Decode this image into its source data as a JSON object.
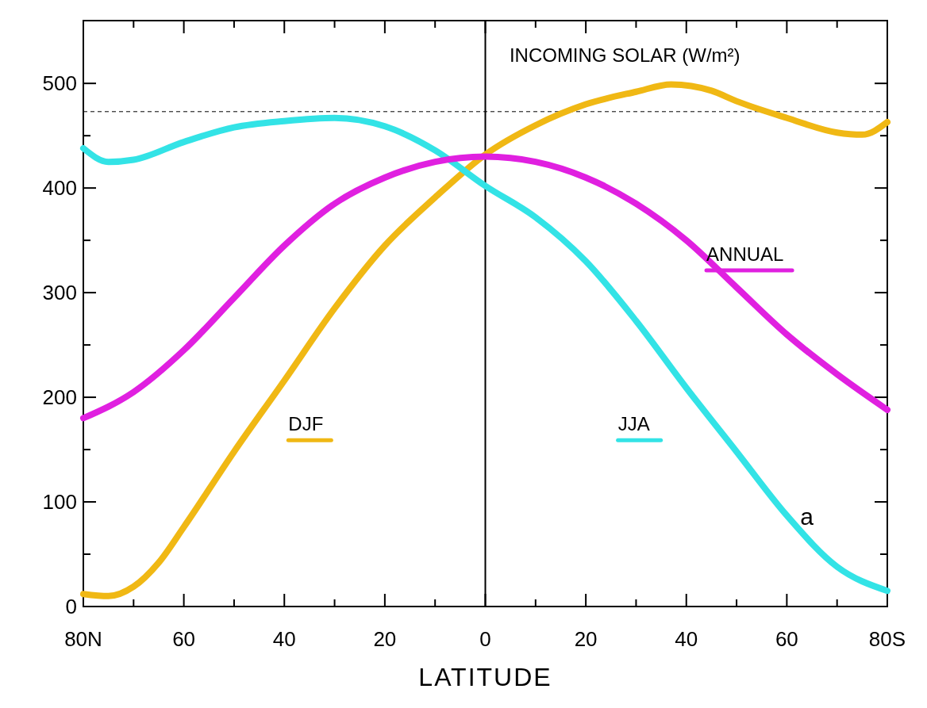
{
  "chart_data": {
    "type": "line",
    "xlabel": "LATITUDE",
    "annotations": [
      "INCOMING SOLAR (W/m²)",
      "a"
    ],
    "xlim": [
      80,
      -80
    ],
    "ylim": [
      0,
      560
    ],
    "xticks": [
      {
        "value": 80,
        "label": "80N"
      },
      {
        "value": 70,
        "label": null
      },
      {
        "value": 60,
        "label": "60"
      },
      {
        "value": 50,
        "label": null
      },
      {
        "value": 40,
        "label": "40"
      },
      {
        "value": 30,
        "label": null
      },
      {
        "value": 20,
        "label": "20"
      },
      {
        "value": 10,
        "label": null
      },
      {
        "value": 0,
        "label": "0"
      },
      {
        "value": -10,
        "label": null
      },
      {
        "value": -20,
        "label": "20"
      },
      {
        "value": -30,
        "label": null
      },
      {
        "value": -40,
        "label": "40"
      },
      {
        "value": -50,
        "label": null
      },
      {
        "value": -60,
        "label": "60"
      },
      {
        "value": -70,
        "label": null
      },
      {
        "value": -80,
        "label": "80S"
      }
    ],
    "yticks": [
      0,
      {
        "value": 50,
        "label": null
      },
      100,
      {
        "value": 150,
        "label": null
      },
      200,
      {
        "value": 250,
        "label": null
      },
      300,
      {
        "value": 350,
        "label": null
      },
      400,
      {
        "value": 450,
        "label": null
      },
      500
    ],
    "grid": false,
    "marker": "none",
    "line_style": "solid",
    "ref_lines": [
      {
        "axis": "y",
        "value": 473,
        "color": "#000000",
        "line_style": "dashed"
      },
      {
        "axis": "x",
        "value": 0,
        "color": "#000000",
        "line_style": "solid"
      }
    ],
    "series": [
      {
        "name": "DJF",
        "color": "#f0b814",
        "x": [
          80,
          75,
          70,
          65,
          60,
          50,
          40,
          30,
          20,
          10,
          0,
          -10,
          -20,
          -30,
          -37,
          -45,
          -50,
          -60,
          -70,
          -75,
          -80
        ],
        "values": [
          12,
          10,
          19,
          42,
          76,
          148,
          216,
          285,
          345,
          391,
          432,
          460,
          480,
          492,
          499,
          493,
          483,
          467,
          453,
          451,
          463
        ]
      },
      {
        "name": "JJA",
        "color": "#33e3e6",
        "x": [
          80,
          75,
          70,
          60,
          50,
          40,
          30,
          20,
          10,
          0,
          -10,
          -20,
          -30,
          -40,
          -50,
          -60,
          -70,
          -80
        ],
        "values": [
          438,
          425,
          427,
          444,
          458,
          464,
          467,
          459,
          436,
          402,
          372,
          330,
          273,
          209,
          148,
          87,
          38,
          15
        ]
      },
      {
        "name": "ANNUAL",
        "color": "#e020e0",
        "x": [
          80,
          70,
          60,
          50,
          40,
          30,
          20,
          10,
          0,
          -10,
          -20,
          -30,
          -40,
          -50,
          -60,
          -70,
          -80
        ],
        "values": [
          180,
          205,
          245,
          295,
          345,
          385,
          410,
          425,
          430,
          425,
          410,
          385,
          350,
          305,
          260,
          222,
          188
        ]
      }
    ]
  }
}
